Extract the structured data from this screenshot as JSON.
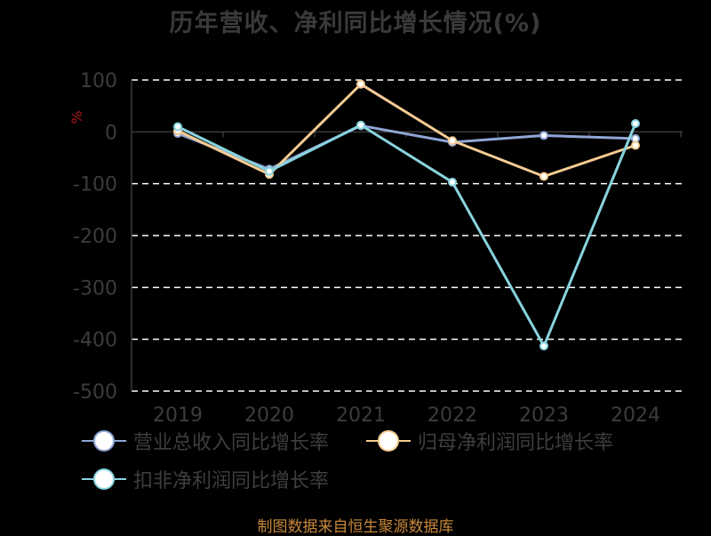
{
  "chart_data": {
    "type": "line",
    "title": "历年营收、净利同比增长情况(%)",
    "ylabel": "%",
    "xlabel": "",
    "categories": [
      "2019",
      "2020",
      "2021",
      "2022",
      "2023",
      "2024"
    ],
    "ylim": [
      -500,
      100
    ],
    "yticks": [
      100,
      0,
      -100,
      -200,
      -300,
      -400,
      -500
    ],
    "grid": true,
    "legend_position": "bottom",
    "series": [
      {
        "name": "营业总收入同比增长率",
        "color": "#8fa6d6",
        "values": [
          -3,
          -72,
          12,
          -20,
          -7,
          -13
        ]
      },
      {
        "name": "归母净利润同比增长率",
        "color": "#f5cb94",
        "values": [
          2,
          -82,
          92,
          -17,
          -86,
          -26
        ]
      },
      {
        "name": "扣非净利润同比增长率",
        "color": "#88d3de",
        "values": [
          10,
          -76,
          13,
          -97,
          -413,
          16
        ]
      }
    ]
  },
  "footer": {
    "source": "制图数据来自恒生聚源数据库"
  }
}
